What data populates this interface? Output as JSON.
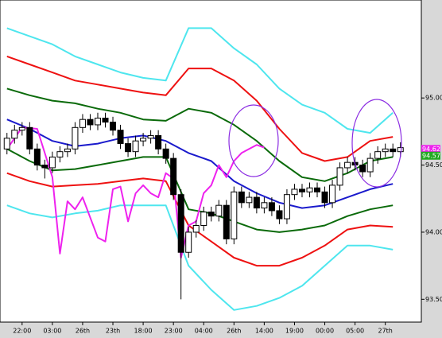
{
  "chart_data": {
    "type": "candlestick",
    "ylim": [
      93.33,
      95.73
    ],
    "yticks": [
      {
        "value": 95,
        "label": "95.00"
      },
      {
        "value": 94.5,
        "label": "94.50"
      },
      {
        "value": 94,
        "label": "94.00"
      },
      {
        "value": 93.5,
        "label": "93.50"
      }
    ],
    "xlim": [
      -0.5,
      53.5
    ],
    "xticks": [
      {
        "value": 2,
        "label": "22:00"
      },
      {
        "value": 6,
        "label": "03:00"
      },
      {
        "value": 10,
        "label": "26th"
      },
      {
        "value": 14,
        "label": "23th"
      },
      {
        "value": 18,
        "label": "18:00"
      },
      {
        "value": 22,
        "label": "23:00"
      },
      {
        "value": 26,
        "label": "04:00"
      },
      {
        "value": 30,
        "label": "26th"
      },
      {
        "value": 34,
        "label": "14:00"
      },
      {
        "value": 38,
        "label": "19:00"
      },
      {
        "value": 42,
        "label": "00:00"
      },
      {
        "value": 46,
        "label": "05:00"
      },
      {
        "value": 50,
        "label": "27th"
      }
    ],
    "candles": {
      "up_color": "#ffffff",
      "down_color": "#000000",
      "open": [
        94.62,
        94.7,
        94.76,
        94.78,
        94.62,
        94.5,
        94.48,
        94.56,
        94.6,
        94.62,
        94.78,
        94.84,
        94.8,
        94.85,
        94.82,
        94.76,
        94.66,
        94.6,
        94.68,
        94.7,
        94.72,
        94.62,
        94.55,
        94.28,
        93.85,
        94.0,
        94.05,
        94.15,
        94.12,
        94.2,
        93.95,
        94.3,
        94.22,
        94.26,
        94.18,
        94.22,
        94.16,
        94.1,
        94.28,
        94.32,
        94.3,
        94.33,
        94.3,
        94.22,
        94.35,
        94.48,
        94.52,
        94.5,
        94.45,
        94.55,
        94.6,
        94.62,
        94.6
      ],
      "high": [
        94.74,
        94.8,
        94.82,
        94.82,
        94.66,
        94.54,
        94.6,
        94.64,
        94.66,
        94.82,
        94.88,
        94.88,
        94.89,
        94.89,
        94.86,
        94.8,
        94.7,
        94.72,
        94.74,
        94.76,
        94.76,
        94.66,
        94.59,
        94.32,
        94.04,
        94.09,
        94.19,
        94.19,
        94.24,
        94.24,
        94.34,
        94.34,
        94.3,
        94.3,
        94.26,
        94.26,
        94.2,
        94.32,
        94.36,
        94.36,
        94.37,
        94.37,
        94.34,
        94.39,
        94.52,
        94.56,
        94.56,
        94.54,
        94.59,
        94.64,
        94.66,
        94.66,
        94.67
      ],
      "low": [
        94.58,
        94.66,
        94.72,
        94.58,
        94.46,
        94.4,
        94.44,
        94.52,
        94.56,
        94.58,
        94.74,
        94.76,
        94.76,
        94.78,
        94.72,
        94.62,
        94.56,
        94.56,
        94.64,
        94.66,
        94.58,
        94.51,
        94.24,
        93.5,
        93.81,
        93.96,
        94.01,
        94.08,
        94.08,
        93.91,
        93.91,
        94.18,
        94.18,
        94.14,
        94.14,
        94.12,
        94.06,
        94.06,
        94.24,
        94.26,
        94.26,
        94.26,
        94.18,
        94.18,
        94.31,
        94.44,
        94.46,
        94.41,
        94.41,
        94.51,
        94.56,
        94.56,
        94.56
      ],
      "close": [
        94.7,
        94.76,
        94.78,
        94.62,
        94.5,
        94.48,
        94.56,
        94.6,
        94.62,
        94.78,
        94.84,
        94.8,
        94.85,
        94.82,
        94.76,
        94.66,
        94.6,
        94.68,
        94.7,
        94.72,
        94.62,
        94.55,
        94.28,
        93.85,
        94.0,
        94.05,
        94.15,
        94.12,
        94.2,
        93.95,
        94.3,
        94.22,
        94.26,
        94.18,
        94.22,
        94.16,
        94.1,
        94.28,
        94.32,
        94.3,
        94.33,
        94.3,
        94.22,
        94.35,
        94.48,
        94.52,
        94.5,
        94.45,
        94.55,
        94.6,
        94.62,
        94.6,
        94.63
      ]
    },
    "lines": [
      {
        "color": "#4ee6ee",
        "x": [
          0,
          3,
          6,
          9,
          12,
          15,
          18,
          21,
          24,
          27,
          30,
          33,
          36,
          39,
          42,
          45,
          48,
          51
        ],
        "values": [
          95.52,
          95.46,
          95.4,
          95.31,
          95.25,
          95.19,
          95.15,
          95.13,
          95.52,
          95.52,
          95.37,
          95.25,
          95.07,
          94.95,
          94.89,
          94.77,
          94.74,
          94.89
        ]
      },
      {
        "color": "#ee1111",
        "x": [
          0,
          3,
          6,
          9,
          12,
          15,
          18,
          21,
          24,
          27,
          30,
          33,
          36,
          39,
          42,
          45,
          48,
          51
        ],
        "values": [
          95.31,
          95.25,
          95.19,
          95.13,
          95.1,
          95.07,
          95.04,
          95.02,
          95.22,
          95.22,
          95.13,
          94.98,
          94.77,
          94.59,
          94.53,
          94.56,
          94.68,
          94.71
        ]
      },
      {
        "color": "#0a6a0a",
        "x": [
          0,
          3,
          6,
          9,
          12,
          15,
          18,
          21,
          24,
          27,
          30,
          33,
          36,
          39,
          42,
          45,
          48,
          51
        ],
        "values": [
          95.07,
          95.02,
          94.98,
          94.96,
          94.92,
          94.89,
          94.84,
          94.83,
          94.92,
          94.89,
          94.8,
          94.68,
          94.53,
          94.41,
          94.38,
          94.44,
          94.53,
          94.56
        ]
      },
      {
        "color": "#1a1acc",
        "x": [
          0,
          3,
          6,
          9,
          12,
          15,
          18,
          21,
          24,
          27,
          30,
          33,
          36,
          39,
          42,
          45,
          48,
          51
        ],
        "values": [
          94.84,
          94.77,
          94.68,
          94.64,
          94.66,
          94.7,
          94.72,
          94.68,
          94.59,
          94.53,
          94.38,
          94.29,
          94.22,
          94.18,
          94.2,
          94.26,
          94.32,
          94.36
        ]
      },
      {
        "color": "#0a6a0a",
        "x": [
          0,
          3,
          6,
          9,
          12,
          15,
          18,
          21,
          24,
          27,
          30,
          33,
          36,
          39,
          42,
          45,
          48,
          51
        ],
        "values": [
          94.62,
          94.53,
          94.46,
          94.47,
          94.5,
          94.53,
          94.56,
          94.56,
          94.17,
          94.14,
          94.08,
          94.02,
          94.0,
          94.02,
          94.05,
          94.12,
          94.17,
          94.2
        ]
      },
      {
        "color": "#ee1111",
        "x": [
          0,
          3,
          6,
          9,
          12,
          15,
          18,
          21,
          24,
          27,
          30,
          33,
          36,
          39,
          42,
          45,
          48,
          51
        ],
        "values": [
          94.44,
          94.38,
          94.34,
          94.35,
          94.36,
          94.38,
          94.4,
          94.38,
          94.05,
          93.93,
          93.81,
          93.75,
          93.75,
          93.81,
          93.9,
          94.02,
          94.05,
          94.04
        ]
      },
      {
        "color": "#4ee6ee",
        "x": [
          0,
          3,
          6,
          9,
          12,
          15,
          18,
          21,
          24,
          27,
          30,
          33,
          36,
          39,
          42,
          45,
          48,
          51
        ],
        "values": [
          94.2,
          94.14,
          94.11,
          94.14,
          94.16,
          94.2,
          94.2,
          94.2,
          93.75,
          93.57,
          93.42,
          93.45,
          93.51,
          93.6,
          93.75,
          93.9,
          93.9,
          93.87
        ]
      },
      {
        "color": "#ee22ee",
        "x": [
          0,
          2,
          4,
          6,
          7,
          8,
          9,
          10,
          12,
          13,
          14,
          15,
          16,
          17,
          18,
          19,
          20,
          21,
          22,
          23,
          24,
          25,
          26,
          27,
          28,
          29,
          30,
          31,
          32,
          33,
          34
        ],
        "values": [
          94.62,
          94.78,
          94.77,
          94.41,
          93.84,
          94.23,
          94.17,
          94.26,
          93.96,
          93.93,
          94.32,
          94.34,
          94.08,
          94.29,
          94.35,
          94.29,
          94.26,
          94.44,
          94.4,
          93.81,
          94.05,
          94.08,
          94.29,
          94.35,
          94.5,
          94.41,
          94.53,
          94.59,
          94.62,
          94.65,
          94.63
        ]
      }
    ],
    "price_labels": [
      {
        "value": 94.62,
        "label": "94.62",
        "color": "#ee22ee"
      },
      {
        "value": 94.57,
        "label": "94.57",
        "color": "#22aa22"
      }
    ]
  }
}
